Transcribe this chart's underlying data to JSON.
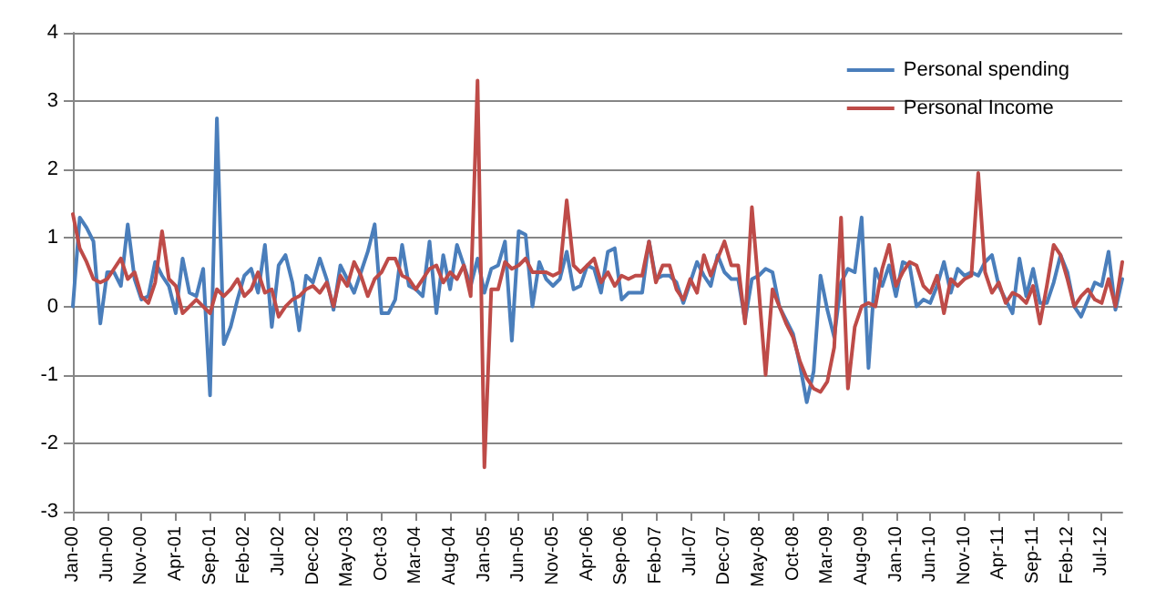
{
  "chart_data": {
    "type": "line",
    "categories": [
      "Jan-00",
      null,
      null,
      null,
      null,
      "Jun-00",
      null,
      null,
      null,
      null,
      "Nov-00",
      null,
      null,
      null,
      null,
      "Apr-01",
      null,
      null,
      null,
      null,
      "Sep-01",
      null,
      null,
      null,
      null,
      "Feb-02",
      null,
      null,
      null,
      null,
      "Jul-02",
      null,
      null,
      null,
      null,
      "Dec-02",
      null,
      null,
      null,
      null,
      "May-03",
      null,
      null,
      null,
      null,
      "Oct-03",
      null,
      null,
      null,
      null,
      "Mar-04",
      null,
      null,
      null,
      null,
      "Aug-04",
      null,
      null,
      null,
      null,
      "Jan-05",
      null,
      null,
      null,
      null,
      "Jun-05",
      null,
      null,
      null,
      null,
      "Nov-05",
      null,
      null,
      null,
      null,
      "Apr-06",
      null,
      null,
      null,
      null,
      "Sep-06",
      null,
      null,
      null,
      null,
      "Feb-07",
      null,
      null,
      null,
      null,
      "Jul-07",
      null,
      null,
      null,
      null,
      "Dec-07",
      null,
      null,
      null,
      null,
      "May-08",
      null,
      null,
      null,
      null,
      "Oct-08",
      null,
      null,
      null,
      null,
      "Mar-09",
      null,
      null,
      null,
      null,
      "Aug-09",
      null,
      null,
      null,
      null,
      "Jan-10",
      null,
      null,
      null,
      null,
      "Jun-10",
      null,
      null,
      null,
      null,
      "Nov-10",
      null,
      null,
      null,
      null,
      "Apr-11",
      null,
      null,
      null,
      null,
      "Sep-11",
      null,
      null,
      null,
      null,
      "Feb-12",
      null,
      null,
      null,
      null,
      "Jul-12",
      null,
      null,
      null
    ],
    "series": [
      {
        "name": "Personal spending",
        "color": "#4a7ebb",
        "values": [
          0.0,
          1.3,
          1.15,
          0.95,
          -0.25,
          0.5,
          0.5,
          0.3,
          1.2,
          0.4,
          0.1,
          0.15,
          0.65,
          0.45,
          0.3,
          -0.1,
          0.7,
          0.2,
          0.15,
          0.55,
          -1.3,
          2.75,
          -0.55,
          -0.3,
          0.1,
          0.45,
          0.55,
          0.2,
          0.9,
          -0.3,
          0.6,
          0.75,
          0.35,
          -0.35,
          0.45,
          0.35,
          0.7,
          0.4,
          -0.05,
          0.6,
          0.4,
          0.2,
          0.5,
          0.8,
          1.2,
          -0.1,
          -0.1,
          0.1,
          0.9,
          0.3,
          0.25,
          0.15,
          0.95,
          -0.1,
          0.75,
          0.25,
          0.9,
          0.6,
          0.3,
          0.7,
          0.2,
          0.55,
          0.6,
          0.95,
          -0.5,
          1.1,
          1.05,
          0.0,
          0.65,
          0.4,
          0.3,
          0.4,
          0.8,
          0.25,
          0.3,
          0.6,
          0.55,
          0.2,
          0.8,
          0.85,
          0.1,
          0.2,
          0.2,
          0.2,
          0.95,
          0.4,
          0.45,
          0.45,
          0.35,
          0.05,
          0.35,
          0.65,
          0.45,
          0.3,
          0.75,
          0.5,
          0.4,
          0.4,
          -0.2,
          0.4,
          0.45,
          0.55,
          0.5,
          0.0,
          -0.2,
          -0.4,
          -0.85,
          -1.4,
          -0.95,
          0.45,
          -0.05,
          -0.45,
          0.35,
          0.55,
          0.5,
          1.3,
          -0.9,
          0.55,
          0.3,
          0.6,
          0.15,
          0.65,
          0.6,
          0.0,
          0.1,
          0.05,
          0.3,
          0.65,
          0.2,
          0.55,
          0.45,
          0.5,
          0.45,
          0.65,
          0.75,
          0.3,
          0.1,
          -0.1,
          0.7,
          0.15,
          0.55,
          0.05,
          0.05,
          0.35,
          0.75,
          0.5,
          0.0,
          -0.15,
          0.1,
          0.35,
          0.3,
          0.8,
          -0.05,
          0.4
        ]
      },
      {
        "name": "Personal Income",
        "color": "#be4b48",
        "values": [
          1.35,
          0.85,
          0.65,
          0.4,
          0.35,
          0.4,
          0.55,
          0.7,
          0.4,
          0.5,
          0.15,
          0.05,
          0.35,
          1.1,
          0.4,
          0.3,
          -0.1,
          0.0,
          0.1,
          0.0,
          -0.1,
          0.25,
          0.15,
          0.25,
          0.4,
          0.15,
          0.25,
          0.5,
          0.2,
          0.25,
          -0.15,
          0.0,
          0.1,
          0.15,
          0.25,
          0.3,
          0.2,
          0.35,
          0.0,
          0.45,
          0.3,
          0.65,
          0.45,
          0.15,
          0.4,
          0.5,
          0.7,
          0.7,
          0.45,
          0.4,
          0.25,
          0.4,
          0.55,
          0.6,
          0.35,
          0.5,
          0.4,
          0.6,
          0.15,
          3.3,
          -2.35,
          0.25,
          0.25,
          0.65,
          0.55,
          0.6,
          0.7,
          0.5,
          0.5,
          0.5,
          0.45,
          0.5,
          1.55,
          0.6,
          0.5,
          0.6,
          0.7,
          0.35,
          0.5,
          0.3,
          0.45,
          0.4,
          0.45,
          0.45,
          0.95,
          0.35,
          0.6,
          0.6,
          0.25,
          0.1,
          0.4,
          0.2,
          0.75,
          0.45,
          0.7,
          0.95,
          0.6,
          0.6,
          -0.25,
          1.45,
          0.25,
          -1.0,
          0.25,
          0.0,
          -0.25,
          -0.45,
          -0.8,
          -1.05,
          -1.2,
          -1.25,
          -1.1,
          -0.6,
          1.3,
          -1.2,
          -0.3,
          0.0,
          0.05,
          0.0,
          0.55,
          0.9,
          0.3,
          0.5,
          0.65,
          0.6,
          0.3,
          0.2,
          0.45,
          -0.1,
          0.4,
          0.3,
          0.4,
          0.45,
          1.95,
          0.5,
          0.2,
          0.35,
          0.05,
          0.2,
          0.15,
          0.05,
          0.3,
          -0.25,
          0.3,
          0.9,
          0.75,
          0.4,
          0.0,
          0.15,
          0.25,
          0.1,
          0.05,
          0.4,
          0.0,
          0.65
        ]
      }
    ],
    "ylim": [
      -3,
      4
    ],
    "yticks": [
      -3,
      -2,
      -1,
      0,
      1,
      2,
      3,
      4
    ],
    "grid": "y",
    "legend": "top right",
    "marker": "none",
    "line_style": "solid"
  }
}
